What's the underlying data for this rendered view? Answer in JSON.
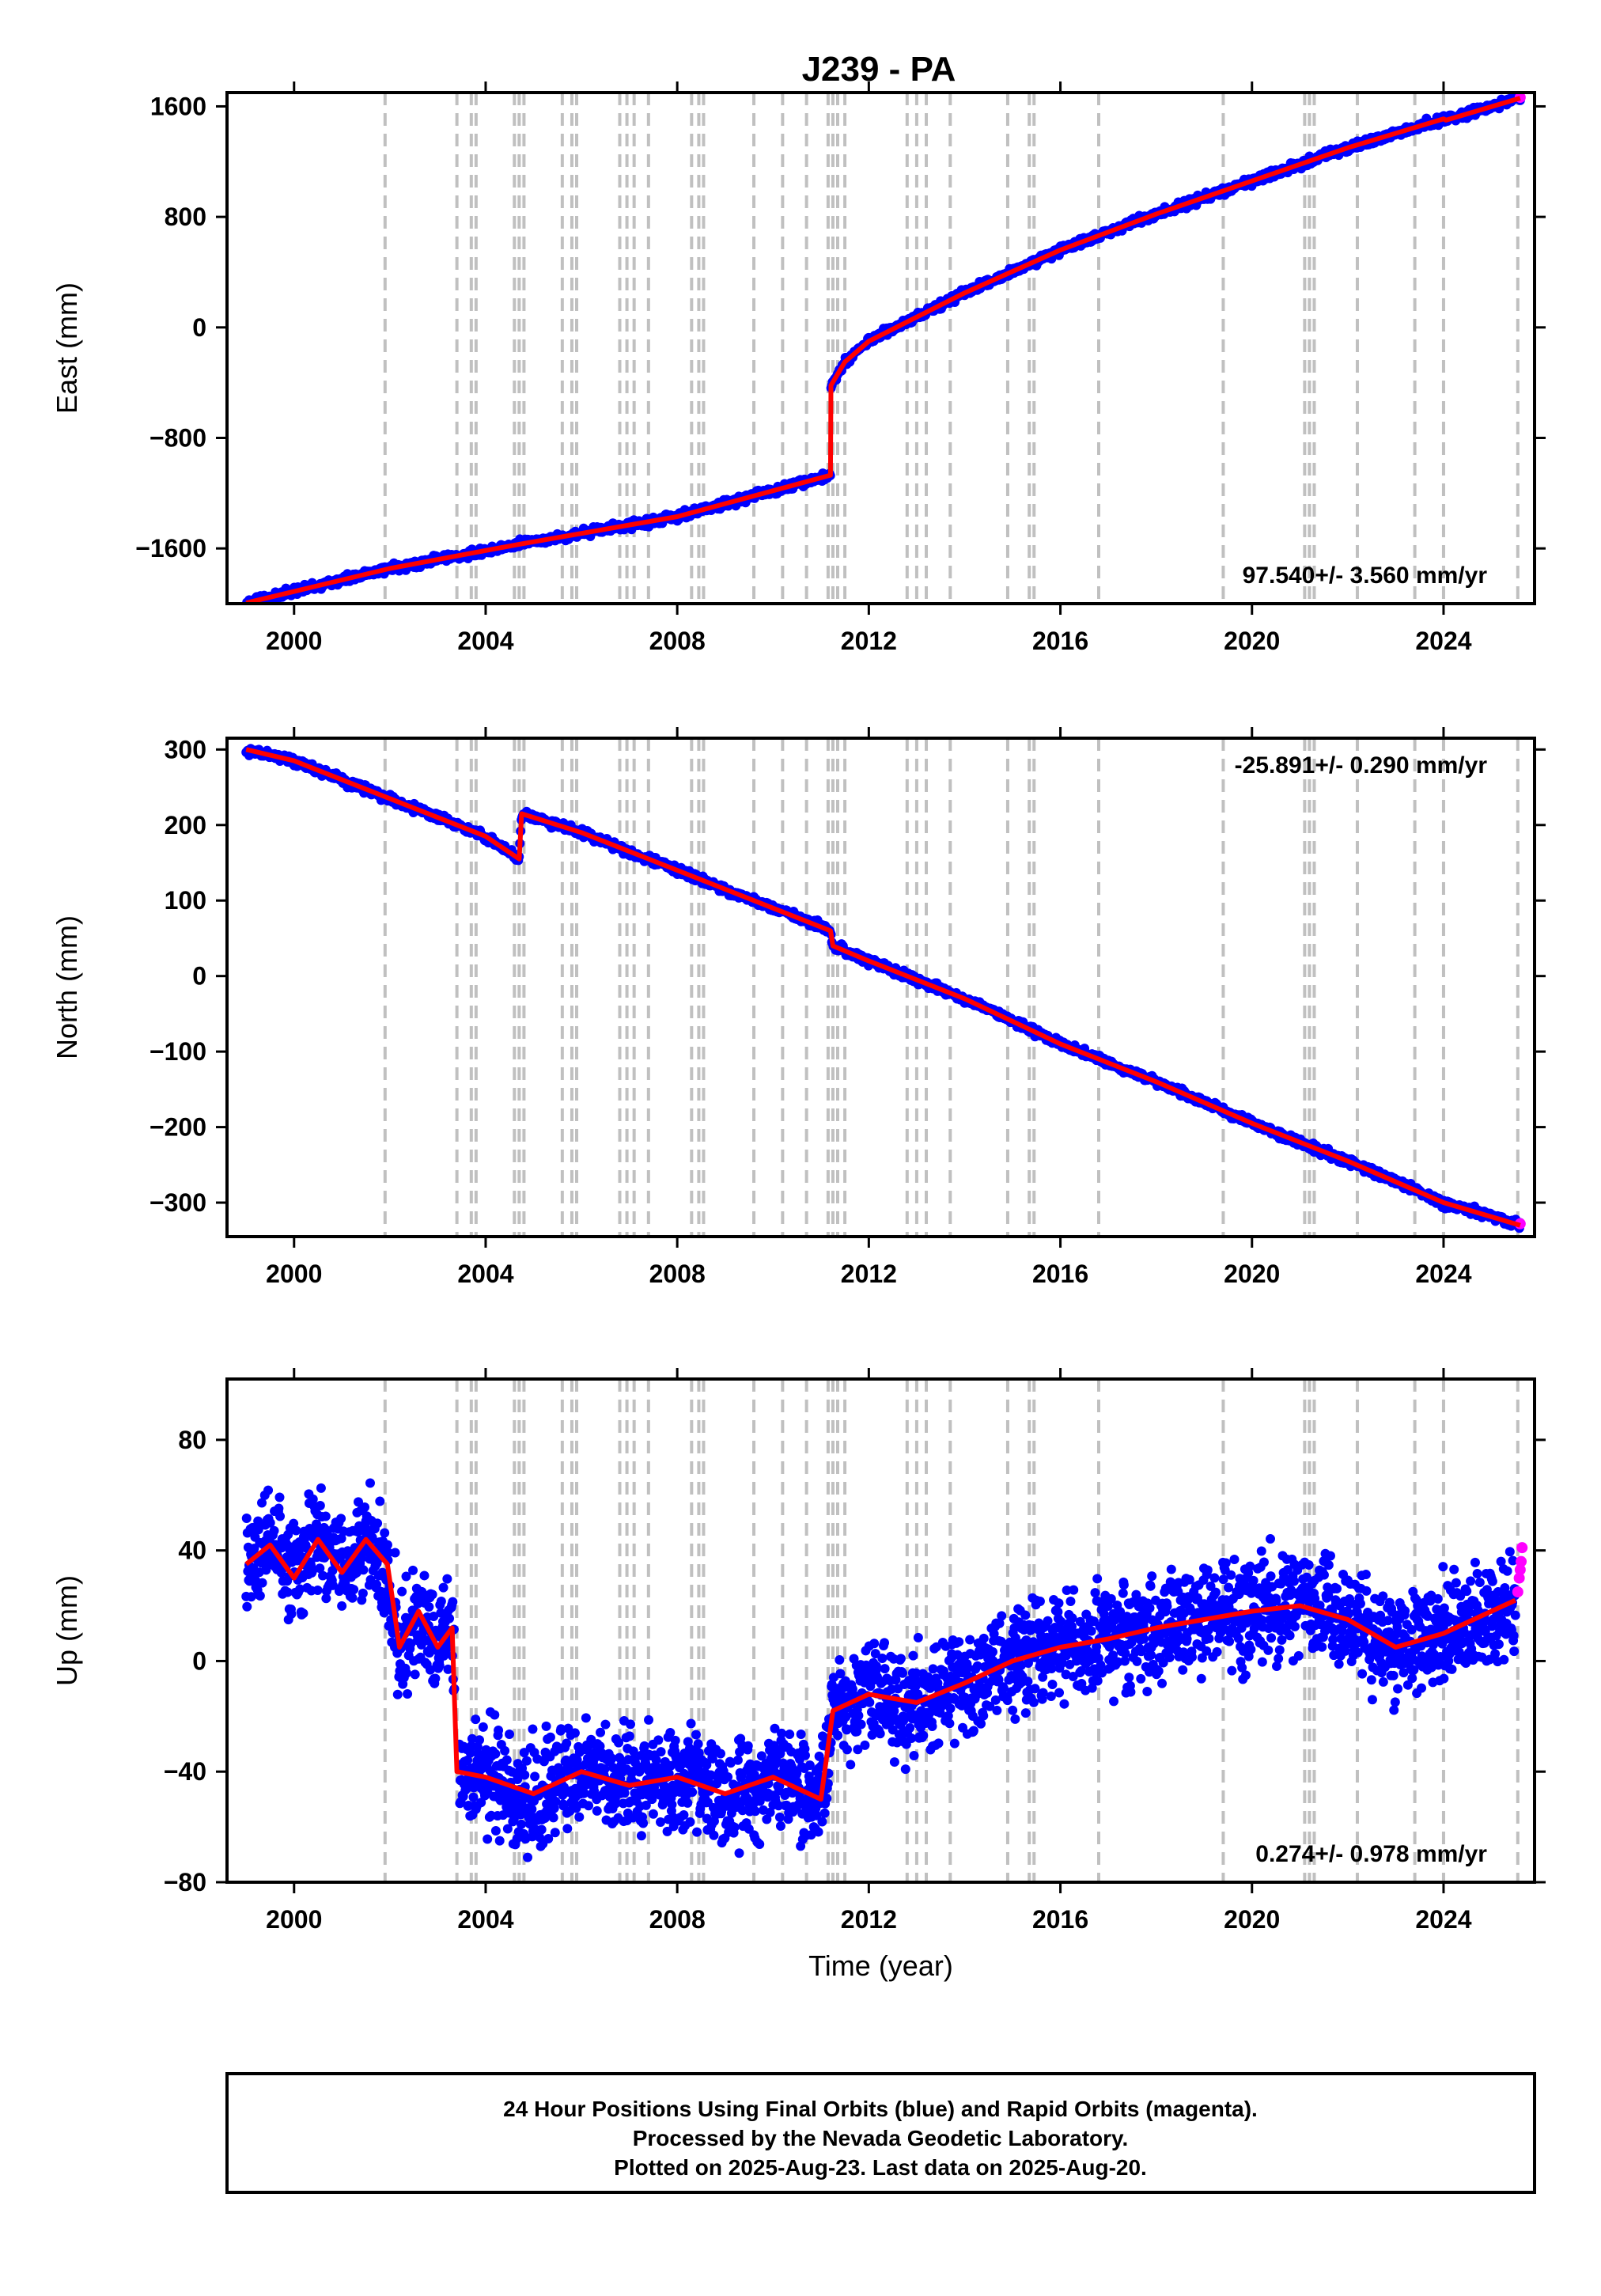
{
  "figure": {
    "title": "J239 - PA",
    "colors": {
      "final_orbits": "#0000ff",
      "rapid_orbits": "#ff00ff",
      "model": "#ff0000",
      "event_lines": "#c0c0c0",
      "frame": "#000000"
    },
    "footer": {
      "line1": "24 Hour Positions Using Final Orbits (blue) and Rapid Orbits (magenta).",
      "line2": "Processed by the Nevada Geodetic Laboratory.",
      "line3": "Plotted on 2025-Aug-23. Last data on 2025-Aug-20."
    }
  },
  "chart_data": [
    {
      "type": "scatter",
      "component": "east",
      "ylabel": "East (mm)",
      "xlabel": "",
      "xlim": [
        1998.6,
        2025.9
      ],
      "ylim": [
        -2000,
        1700
      ],
      "xticks": [
        2000,
        2004,
        2008,
        2012,
        2016,
        2020,
        2024
      ],
      "yticks": [
        -1600,
        -800,
        0,
        800,
        1600
      ],
      "ytick_labels": [
        "−1600",
        "−800",
        "0",
        "800",
        "1600"
      ],
      "rate_text": "97.540+/- 3.560 mm/yr",
      "rate_position": "bottom-right",
      "grid": false,
      "series": [
        {
          "name": "Final Orbits",
          "color": "#0000ff",
          "x": [
            1999.0,
            2002.0,
            2004.7,
            2008.0,
            2011.2,
            2011.21,
            2011.5,
            2012.0,
            2014.0,
            2016.0,
            2018.0,
            2020.0,
            2022.0,
            2024.0,
            2024.05,
            2025.6
          ],
          "y": [
            -1995,
            -1745,
            -1570,
            -1370,
            -1070,
            -420,
            -250,
            -100,
            250,
            560,
            820,
            1060,
            1300,
            1510,
            1500,
            1660
          ]
        },
        {
          "name": "Rapid Orbits",
          "color": "#ff00ff",
          "x": [
            2025.6
          ],
          "y": [
            1665
          ]
        }
      ],
      "model": {
        "color": "#ff0000",
        "x": [
          1999.0,
          2002.0,
          2004.7,
          2008.0,
          2011.2,
          2011.21,
          2011.5,
          2012.0,
          2014.0,
          2016.0,
          2018.0,
          2020.0,
          2022.0,
          2024.0,
          2024.05,
          2025.6
        ],
        "y": [
          -1995,
          -1745,
          -1570,
          -1370,
          -1070,
          -420,
          -250,
          -100,
          250,
          560,
          820,
          1060,
          1300,
          1510,
          1500,
          1660
        ]
      }
    },
    {
      "type": "scatter",
      "component": "north",
      "ylabel": "North (mm)",
      "xlabel": "",
      "xlim": [
        1998.6,
        2025.9
      ],
      "ylim": [
        -345,
        315
      ],
      "xticks": [
        2000,
        2004,
        2008,
        2012,
        2016,
        2020,
        2024
      ],
      "yticks": [
        -300,
        -200,
        -100,
        0,
        100,
        200,
        300
      ],
      "ytick_labels": [
        "−300",
        "−200",
        "−100",
        "0",
        "100",
        "200",
        "300"
      ],
      "rate_text": "-25.891+/- 0.290 mm/yr",
      "rate_position": "top-right",
      "grid": false,
      "series": [
        {
          "name": "Final Orbits",
          "color": "#0000ff",
          "x": [
            1999.0,
            2000.0,
            2002.0,
            2004.0,
            2004.7,
            2004.75,
            2006.0,
            2008.0,
            2010.0,
            2011.2,
            2011.25,
            2012.0,
            2014.0,
            2016.0,
            2018.0,
            2020.0,
            2022.0,
            2024.0,
            2025.6
          ],
          "y": [
            300,
            285,
            235,
            185,
            155,
            215,
            190,
            140,
            90,
            60,
            40,
            20,
            -30,
            -90,
            -140,
            -195,
            -245,
            -300,
            -330
          ]
        },
        {
          "name": "Rapid Orbits",
          "color": "#ff00ff",
          "x": [
            2025.6
          ],
          "y": [
            -328
          ]
        }
      ],
      "model": {
        "color": "#ff0000",
        "x": [
          1999.0,
          2000.0,
          2002.0,
          2004.0,
          2004.7,
          2004.75,
          2006.0,
          2008.0,
          2010.0,
          2011.2,
          2011.25,
          2012.0,
          2014.0,
          2016.0,
          2018.0,
          2020.0,
          2022.0,
          2024.0,
          2025.6
        ],
        "y": [
          300,
          285,
          235,
          185,
          155,
          215,
          190,
          140,
          90,
          60,
          40,
          20,
          -30,
          -90,
          -140,
          -195,
          -245,
          -300,
          -330
        ]
      }
    },
    {
      "type": "scatter",
      "component": "up",
      "ylabel": "Up (mm)",
      "xlabel": "Time (year)",
      "xlim": [
        1998.6,
        2025.9
      ],
      "ylim": [
        -80,
        102
      ],
      "xticks": [
        2000,
        2004,
        2008,
        2012,
        2016,
        2020,
        2024
      ],
      "yticks": [
        -80,
        -40,
        0,
        40,
        80
      ],
      "ytick_labels": [
        "−80",
        "−40",
        "0",
        "40",
        "80"
      ],
      "rate_text": "0.274+/- 0.978 mm/yr",
      "rate_position": "bottom-right",
      "grid": false,
      "series": [
        {
          "name": "Final Orbits",
          "color": "#0000ff",
          "x": [
            1999.0,
            1999.5,
            2000.0,
            2000.5,
            2001.0,
            2001.5,
            2001.95,
            2002.2,
            2002.6,
            2003.0,
            2003.3,
            2003.4,
            2004.0,
            2005.0,
            2006.0,
            2007.0,
            2008.0,
            2009.0,
            2010.0,
            2011.0,
            2011.25,
            2012.0,
            2013.0,
            2014.0,
            2015.0,
            2016.0,
            2017.0,
            2018.0,
            2019.0,
            2020.0,
            2021.0,
            2022.0,
            2023.0,
            2024.0,
            2025.0,
            2025.5
          ],
          "y": [
            35,
            42,
            30,
            44,
            32,
            44,
            35,
            5,
            18,
            5,
            12,
            -40,
            -42,
            -48,
            -40,
            -45,
            -42,
            -48,
            -42,
            -50,
            -18,
            -12,
            -15,
            -8,
            0,
            5,
            8,
            12,
            15,
            18,
            20,
            15,
            5,
            10,
            18,
            22
          ]
        },
        {
          "name": "Rapid Orbits",
          "color": "#ff00ff",
          "x": [
            2025.55,
            2025.58,
            2025.6,
            2025.62,
            2025.64
          ],
          "y": [
            25,
            30,
            33,
            36,
            41
          ]
        }
      ],
      "model": {
        "color": "#ff0000",
        "x": [
          1999.0,
          1999.5,
          2000.0,
          2000.5,
          2001.0,
          2001.5,
          2001.95,
          2002.2,
          2002.6,
          2003.0,
          2003.3,
          2003.4,
          2004.0,
          2005.0,
          2006.0,
          2007.0,
          2008.0,
          2009.0,
          2010.0,
          2011.0,
          2011.25,
          2012.0,
          2013.0,
          2014.0,
          2015.0,
          2016.0,
          2017.0,
          2018.0,
          2019.0,
          2020.0,
          2021.0,
          2022.0,
          2023.0,
          2024.0,
          2025.0,
          2025.5
        ],
        "y": [
          35,
          42,
          30,
          44,
          32,
          44,
          35,
          5,
          18,
          5,
          12,
          -40,
          -42,
          -48,
          -40,
          -45,
          -42,
          -48,
          -42,
          -50,
          -18,
          -12,
          -15,
          -8,
          0,
          5,
          8,
          12,
          15,
          18,
          20,
          15,
          5,
          10,
          18,
          22
        ]
      }
    }
  ],
  "event_lines_x": [
    2001.9,
    2003.4,
    2003.7,
    2003.8,
    2004.6,
    2004.7,
    2004.8,
    2005.6,
    2005.8,
    2005.9,
    2006.8,
    2006.95,
    2007.1,
    2007.4,
    2008.3,
    2008.45,
    2008.55,
    2009.6,
    2010.2,
    2010.7,
    2011.15,
    2011.25,
    2011.35,
    2011.5,
    2012.8,
    2013.0,
    2013.2,
    2013.7,
    2014.9,
    2015.35,
    2015.45,
    2016.8,
    2019.4,
    2021.1,
    2021.2,
    2021.3,
    2022.2,
    2023.4,
    2024.0,
    2025.55
  ]
}
